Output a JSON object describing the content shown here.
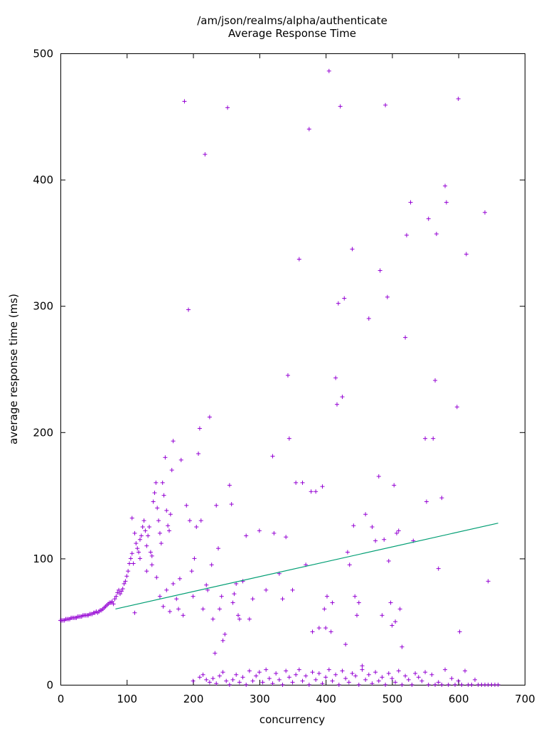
{
  "chart_data": {
    "type": "scatter",
    "title": "/am/json/realms/alpha/authenticate",
    "subtitle": "Average Response Time",
    "xlabel": "concurrency",
    "ylabel": "average response time (ms)",
    "xlim": [
      0,
      700
    ],
    "ylim": [
      0,
      500
    ],
    "x_ticks": [
      0,
      100,
      200,
      300,
      400,
      500,
      600,
      700
    ],
    "y_ticks": [
      0,
      100,
      200,
      300,
      400,
      500
    ],
    "grid": false,
    "legend": "none",
    "colors": {
      "points": "#9400d3",
      "trend": "#009e73"
    },
    "series": [
      {
        "type": "scatter",
        "marker": "plus",
        "points": [
          [
            0,
            51
          ],
          [
            2,
            51
          ],
          [
            4,
            51
          ],
          [
            6,
            51
          ],
          [
            8,
            52
          ],
          [
            10,
            52
          ],
          [
            12,
            52
          ],
          [
            14,
            52
          ],
          [
            16,
            53
          ],
          [
            18,
            53
          ],
          [
            20,
            53
          ],
          [
            22,
            53
          ],
          [
            24,
            53
          ],
          [
            26,
            54
          ],
          [
            28,
            54
          ],
          [
            30,
            54
          ],
          [
            32,
            54
          ],
          [
            34,
            55
          ],
          [
            36,
            55
          ],
          [
            38,
            55
          ],
          [
            40,
            55
          ],
          [
            42,
            55
          ],
          [
            44,
            56
          ],
          [
            46,
            56
          ],
          [
            48,
            56
          ],
          [
            50,
            57
          ],
          [
            52,
            57
          ],
          [
            54,
            58
          ],
          [
            56,
            57
          ],
          [
            58,
            58
          ],
          [
            60,
            59
          ],
          [
            62,
            59
          ],
          [
            64,
            60
          ],
          [
            66,
            61
          ],
          [
            68,
            62
          ],
          [
            70,
            63
          ],
          [
            72,
            64
          ],
          [
            74,
            65
          ],
          [
            76,
            65
          ],
          [
            78,
            66
          ],
          [
            80,
            64
          ],
          [
            82,
            68
          ],
          [
            84,
            70
          ],
          [
            86,
            73
          ],
          [
            88,
            75
          ],
          [
            90,
            72
          ],
          [
            92,
            74
          ],
          [
            94,
            76
          ],
          [
            96,
            80
          ],
          [
            98,
            82
          ],
          [
            100,
            86
          ],
          [
            102,
            90
          ],
          [
            104,
            96
          ],
          [
            106,
            100
          ],
          [
            108,
            104
          ],
          [
            110,
            96
          ],
          [
            112,
            120
          ],
          [
            114,
            112
          ],
          [
            116,
            108
          ],
          [
            118,
            105
          ],
          [
            120,
            115
          ],
          [
            122,
            118
          ],
          [
            124,
            125
          ],
          [
            126,
            130
          ],
          [
            128,
            122
          ],
          [
            130,
            110
          ],
          [
            132,
            118
          ],
          [
            134,
            125
          ],
          [
            136,
            105
          ],
          [
            138,
            102
          ],
          [
            140,
            145
          ],
          [
            142,
            152
          ],
          [
            144,
            160
          ],
          [
            146,
            140
          ],
          [
            148,
            130
          ],
          [
            150,
            120
          ],
          [
            152,
            112
          ],
          [
            154,
            160
          ],
          [
            156,
            150
          ],
          [
            158,
            180
          ],
          [
            160,
            138
          ],
          [
            162,
            126
          ],
          [
            164,
            122
          ],
          [
            166,
            135
          ],
          [
            168,
            170
          ],
          [
            170,
            193
          ],
          [
            108,
            132
          ],
          [
            112,
            57
          ],
          [
            120,
            100
          ],
          [
            130,
            90
          ],
          [
            138,
            95
          ],
          [
            145,
            85
          ],
          [
            150,
            70
          ],
          [
            155,
            62
          ],
          [
            160,
            75
          ],
          [
            165,
            58
          ],
          [
            170,
            80
          ],
          [
            175,
            68
          ],
          [
            178,
            60
          ],
          [
            180,
            84
          ],
          [
            182,
            178
          ],
          [
            185,
            55
          ],
          [
            187,
            462
          ],
          [
            190,
            142
          ],
          [
            193,
            297
          ],
          [
            195,
            130
          ],
          [
            198,
            90
          ],
          [
            200,
            70
          ],
          [
            202,
            100
          ],
          [
            205,
            125
          ],
          [
            208,
            183
          ],
          [
            210,
            203
          ],
          [
            212,
            130
          ],
          [
            215,
            60
          ],
          [
            218,
            420
          ],
          [
            220,
            79
          ],
          [
            222,
            75
          ],
          [
            225,
            212
          ],
          [
            228,
            95
          ],
          [
            230,
            52
          ],
          [
            233,
            25
          ],
          [
            235,
            142
          ],
          [
            238,
            108
          ],
          [
            240,
            60
          ],
          [
            243,
            70
          ],
          [
            245,
            35
          ],
          [
            248,
            40
          ],
          [
            252,
            457
          ],
          [
            255,
            158
          ],
          [
            258,
            143
          ],
          [
            260,
            65
          ],
          [
            262,
            72
          ],
          [
            265,
            80
          ],
          [
            268,
            55
          ],
          [
            270,
            52
          ],
          [
            275,
            82
          ],
          [
            280,
            118
          ],
          [
            285,
            52
          ],
          [
            290,
            68
          ],
          [
            300,
            122
          ],
          [
            310,
            75
          ],
          [
            320,
            181
          ],
          [
            322,
            120
          ],
          [
            330,
            88
          ],
          [
            335,
            68
          ],
          [
            340,
            117
          ],
          [
            343,
            245
          ],
          [
            345,
            195
          ],
          [
            350,
            75
          ],
          [
            355,
            160
          ],
          [
            360,
            337
          ],
          [
            365,
            160
          ],
          [
            370,
            95
          ],
          [
            375,
            440
          ],
          [
            378,
            153
          ],
          [
            380,
            42
          ],
          [
            385,
            153
          ],
          [
            390,
            45
          ],
          [
            395,
            157
          ],
          [
            398,
            60
          ],
          [
            400,
            45
          ],
          [
            402,
            70
          ],
          [
            405,
            486
          ],
          [
            408,
            42
          ],
          [
            410,
            65
          ],
          [
            415,
            243
          ],
          [
            417,
            222
          ],
          [
            419,
            302
          ],
          [
            422,
            458
          ],
          [
            425,
            228
          ],
          [
            428,
            306
          ],
          [
            430,
            32
          ],
          [
            433,
            105
          ],
          [
            436,
            95
          ],
          [
            440,
            345
          ],
          [
            442,
            126
          ],
          [
            444,
            70
          ],
          [
            447,
            55
          ],
          [
            450,
            65
          ],
          [
            455,
            15
          ],
          [
            460,
            135
          ],
          [
            465,
            290
          ],
          [
            470,
            125
          ],
          [
            475,
            114
          ],
          [
            480,
            165
          ],
          [
            482,
            328
          ],
          [
            485,
            55
          ],
          [
            488,
            115
          ],
          [
            490,
            459
          ],
          [
            493,
            307
          ],
          [
            495,
            98
          ],
          [
            498,
            65
          ],
          [
            500,
            47
          ],
          [
            503,
            158
          ],
          [
            505,
            50
          ],
          [
            507,
            120
          ],
          [
            510,
            122
          ],
          [
            512,
            60
          ],
          [
            515,
            30
          ],
          [
            520,
            275
          ],
          [
            522,
            356
          ],
          [
            528,
            382
          ],
          [
            532,
            114
          ],
          [
            550,
            195
          ],
          [
            552,
            145
          ],
          [
            555,
            369
          ],
          [
            562,
            195
          ],
          [
            565,
            241
          ],
          [
            567,
            357
          ],
          [
            570,
            92
          ],
          [
            575,
            148
          ],
          [
            580,
            395
          ],
          [
            582,
            382
          ],
          [
            598,
            220
          ],
          [
            600,
            464
          ],
          [
            602,
            42
          ],
          [
            612,
            341
          ],
          [
            640,
            374
          ],
          [
            645,
            82
          ],
          [
            200,
            3
          ],
          [
            210,
            6
          ],
          [
            215,
            8
          ],
          [
            220,
            4
          ],
          [
            225,
            2
          ],
          [
            230,
            5
          ],
          [
            235,
            1
          ],
          [
            240,
            7
          ],
          [
            245,
            10
          ],
          [
            250,
            3
          ],
          [
            255,
            0
          ],
          [
            260,
            4
          ],
          [
            265,
            8
          ],
          [
            270,
            2
          ],
          [
            275,
            6
          ],
          [
            280,
            0
          ],
          [
            285,
            11
          ],
          [
            290,
            3
          ],
          [
            295,
            7
          ],
          [
            300,
            10
          ],
          [
            305,
            2
          ],
          [
            310,
            12
          ],
          [
            315,
            5
          ],
          [
            320,
            1
          ],
          [
            325,
            9
          ],
          [
            330,
            4
          ],
          [
            335,
            0
          ],
          [
            340,
            11
          ],
          [
            345,
            6
          ],
          [
            350,
            2
          ],
          [
            355,
            8
          ],
          [
            360,
            12
          ],
          [
            365,
            3
          ],
          [
            370,
            7
          ],
          [
            375,
            0
          ],
          [
            380,
            10
          ],
          [
            385,
            4
          ],
          [
            390,
            9
          ],
          [
            395,
            1
          ],
          [
            400,
            6
          ],
          [
            405,
            12
          ],
          [
            410,
            3
          ],
          [
            415,
            8
          ],
          [
            420,
            0
          ],
          [
            425,
            11
          ],
          [
            430,
            5
          ],
          [
            435,
            2
          ],
          [
            440,
            9
          ],
          [
            445,
            7
          ],
          [
            450,
            0
          ],
          [
            455,
            12
          ],
          [
            460,
            4
          ],
          [
            465,
            8
          ],
          [
            470,
            1
          ],
          [
            475,
            10
          ],
          [
            480,
            3
          ],
          [
            485,
            6
          ],
          [
            490,
            0
          ],
          [
            495,
            9
          ],
          [
            500,
            5
          ],
          [
            505,
            2
          ],
          [
            510,
            11
          ],
          [
            515,
            0
          ],
          [
            520,
            7
          ],
          [
            525,
            4
          ],
          [
            530,
            0
          ],
          [
            535,
            9
          ],
          [
            540,
            6
          ],
          [
            545,
            3
          ],
          [
            550,
            10
          ],
          [
            555,
            0
          ],
          [
            560,
            8
          ],
          [
            565,
            0
          ],
          [
            570,
            2
          ],
          [
            575,
            0
          ],
          [
            580,
            12
          ],
          [
            585,
            0
          ],
          [
            590,
            5
          ],
          [
            595,
            0
          ],
          [
            600,
            3
          ],
          [
            605,
            0
          ],
          [
            610,
            11
          ],
          [
            615,
            0
          ],
          [
            620,
            0
          ],
          [
            625,
            4
          ],
          [
            630,
            0
          ],
          [
            635,
            0
          ],
          [
            640,
            0
          ],
          [
            645,
            0
          ],
          [
            650,
            0
          ],
          [
            655,
            0
          ],
          [
            660,
            0
          ]
        ]
      },
      {
        "type": "line",
        "points": [
          [
            83,
            60
          ],
          [
            660,
            128
          ]
        ]
      }
    ]
  }
}
